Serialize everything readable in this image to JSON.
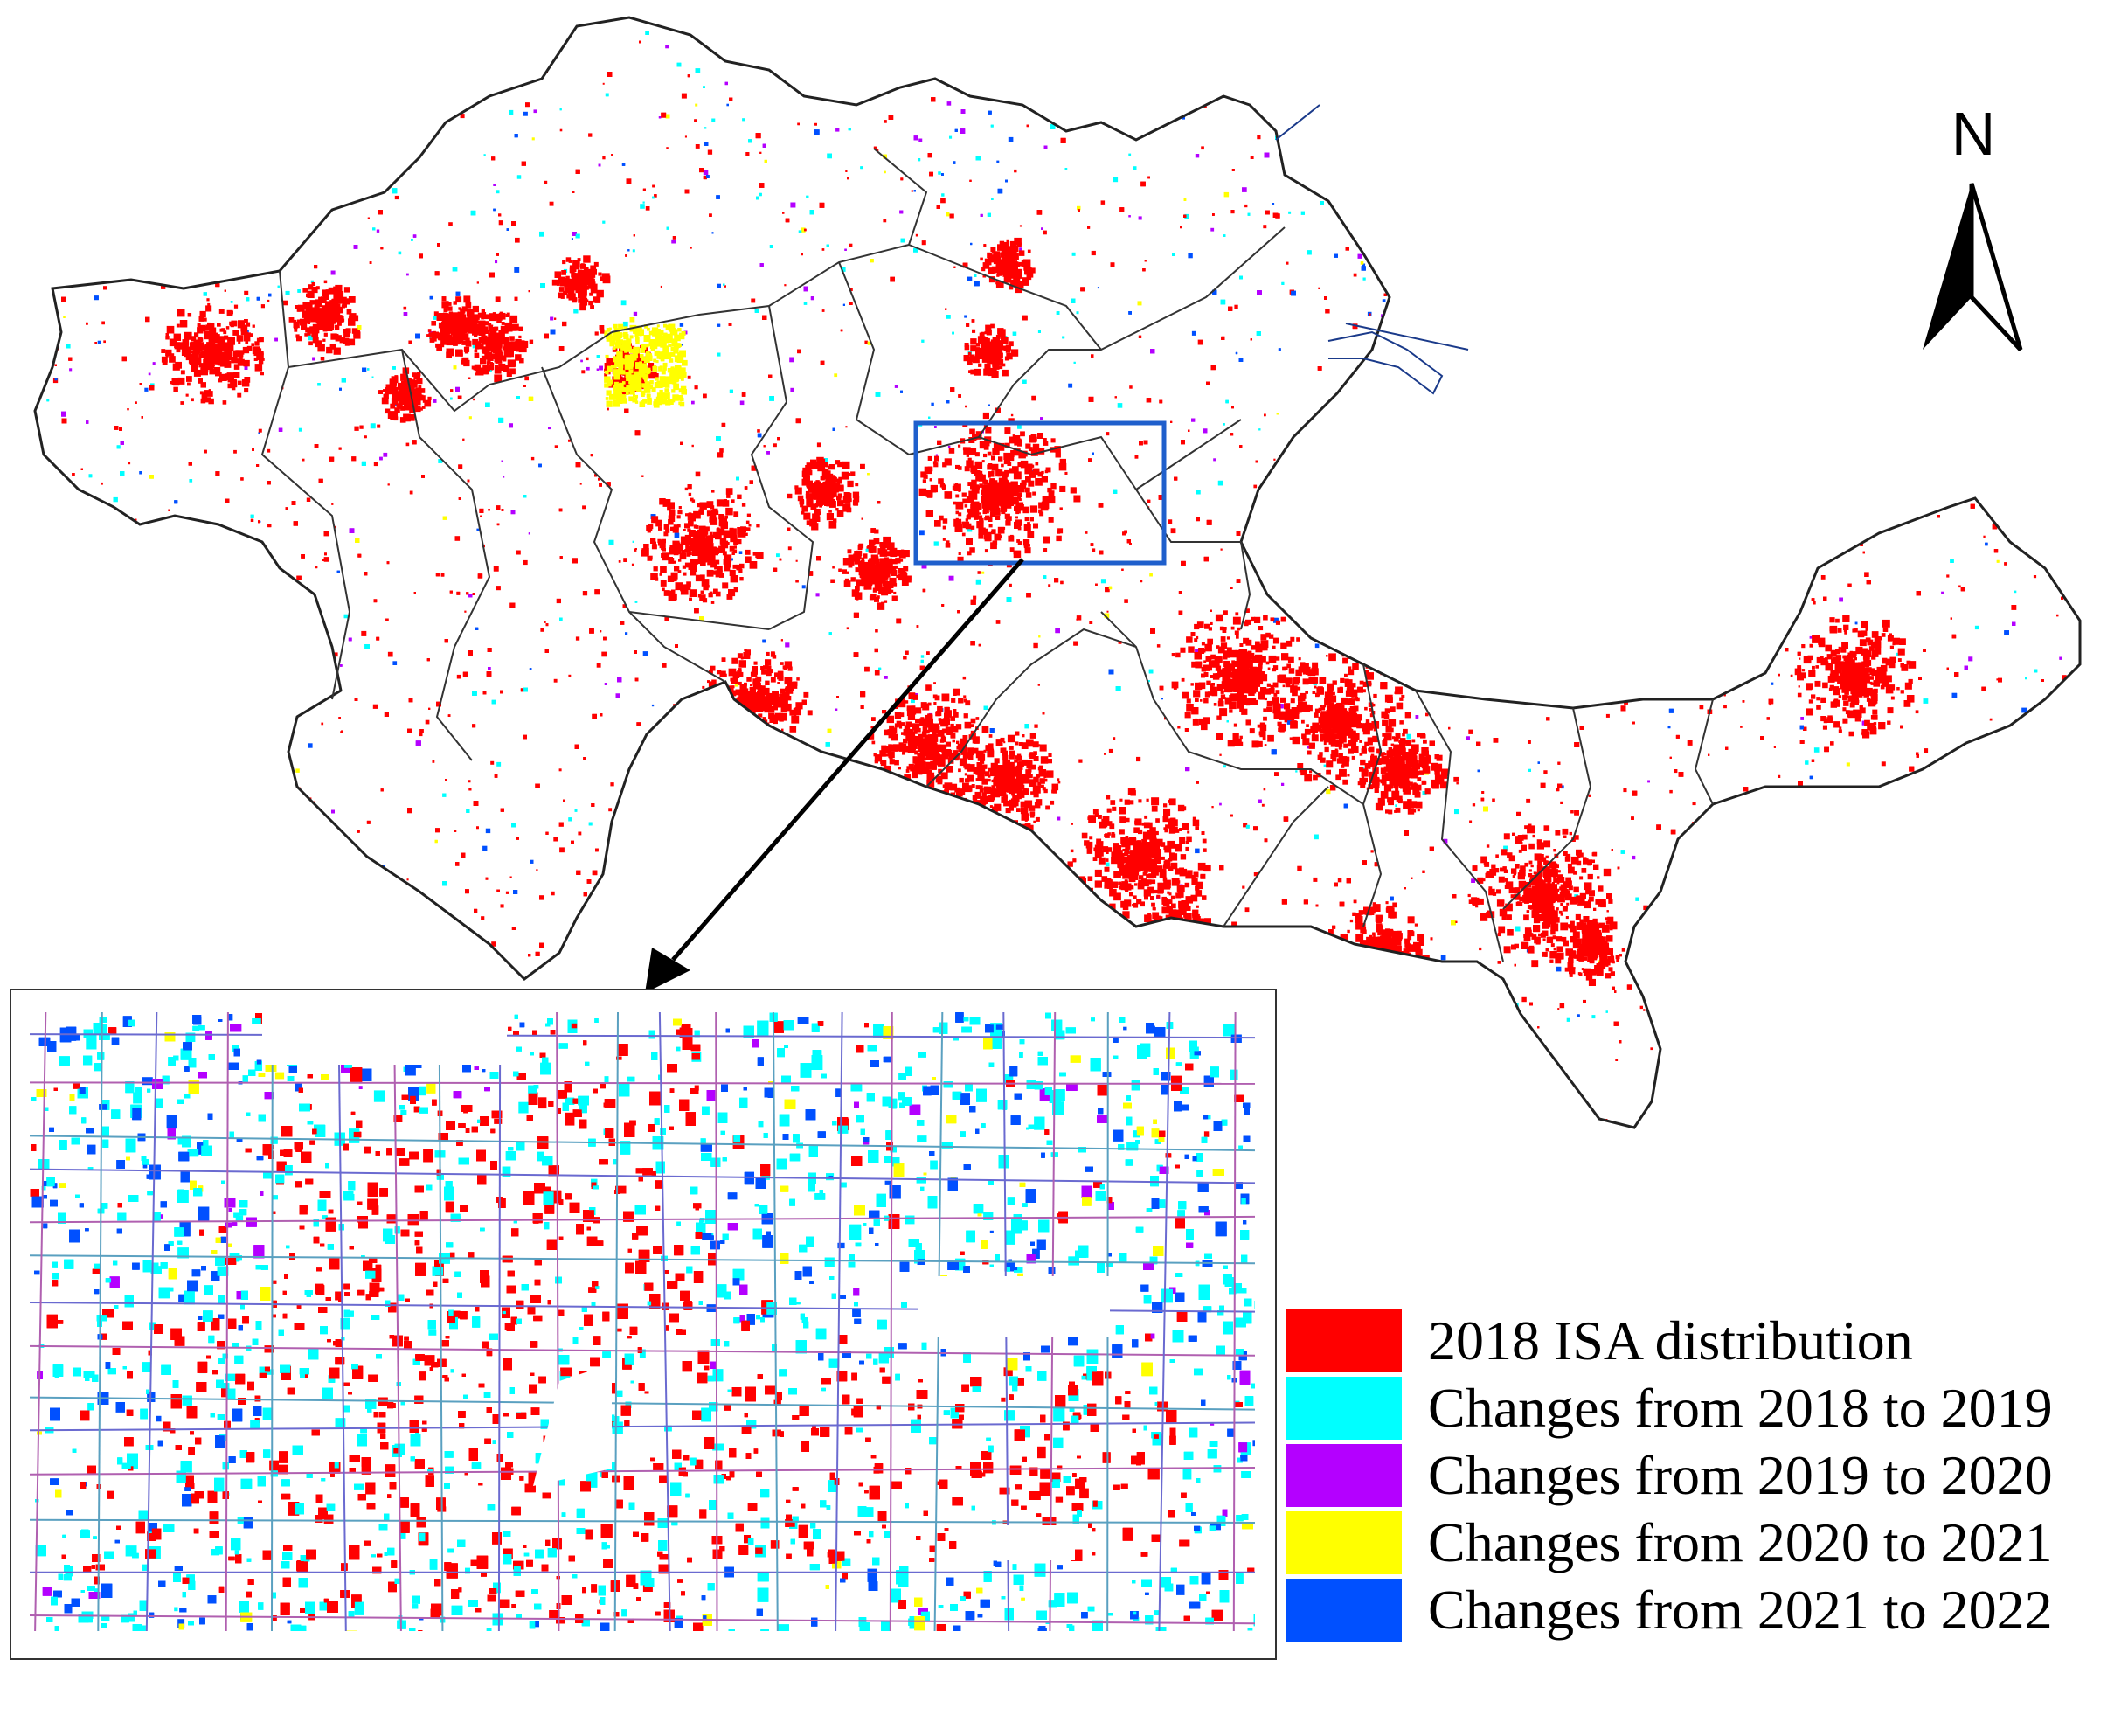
{
  "map": {
    "north_arrow_label": "N",
    "colors": {
      "isa_2018": "#ff0000",
      "change_2018_2019": "#00ffff",
      "change_2019_2020": "#b400ff",
      "change_2020_2021": "#ffff00",
      "change_2021_2022": "#0050ff",
      "boundary": "#222222",
      "inset_frame": "#1f5fcc"
    },
    "legend": [
      {
        "label": "2018 ISA distribution",
        "color": "#ff0000"
      },
      {
        "label": "Changes from 2018 to 2019",
        "color": "#00ffff"
      },
      {
        "label": "Changes from 2019 to 2020",
        "color": "#b400ff"
      },
      {
        "label": "Changes from 2020 to 2021",
        "color": "#ffff00"
      },
      {
        "label": "Changes from 2021 to 2022",
        "color": "#0050ff"
      }
    ]
  }
}
